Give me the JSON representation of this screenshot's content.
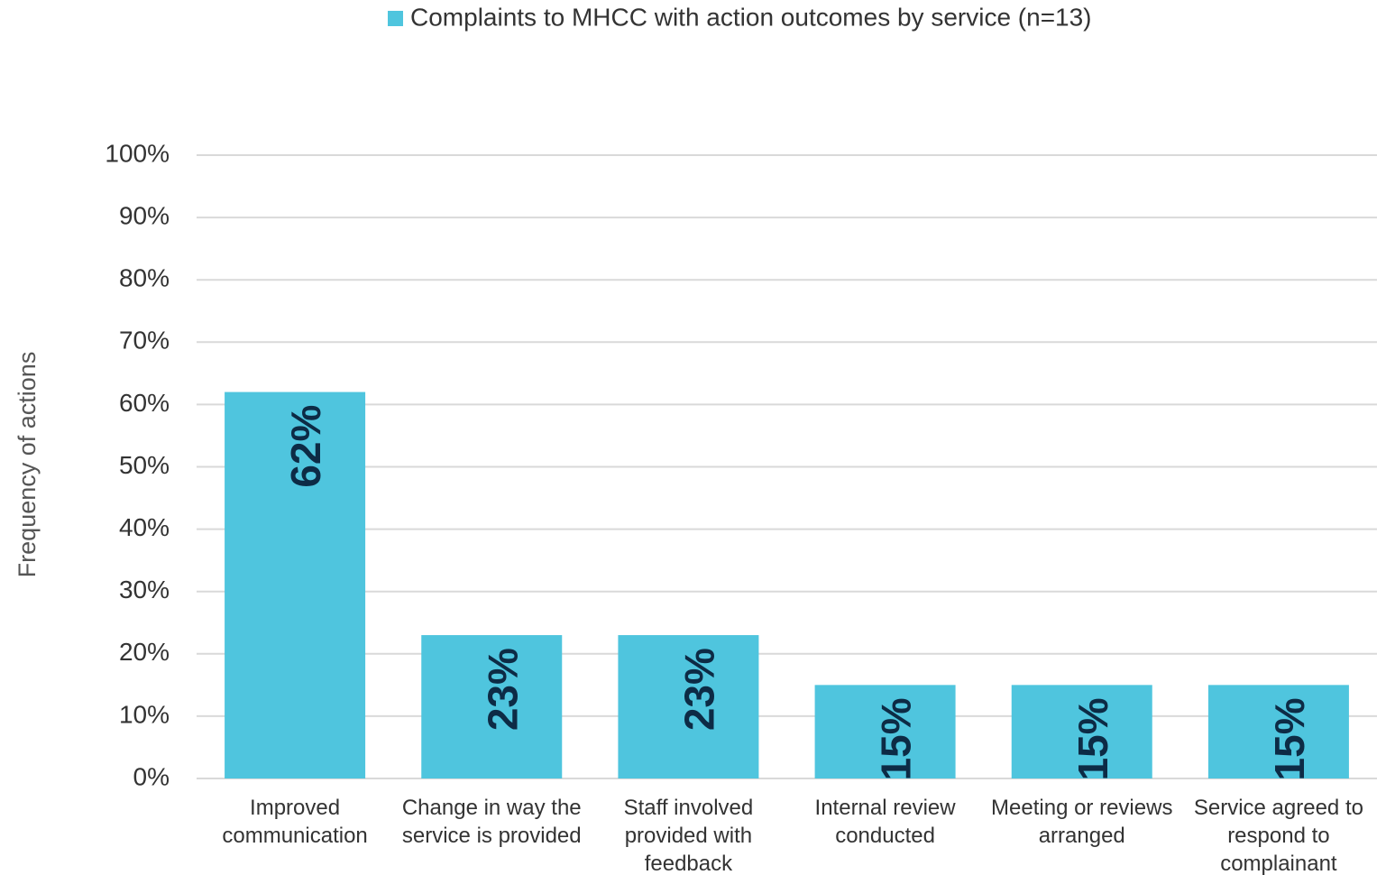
{
  "chart_data": {
    "type": "bar",
    "series": [
      {
        "name": "Complaints to MHCC with action outcomes by service (n=13)",
        "color": "#4fc5de",
        "values": [
          62,
          23,
          23,
          15,
          15,
          15
        ],
        "value_labels": [
          "62%",
          "23%",
          "23%",
          "15%",
          "15%",
          "15%"
        ]
      }
    ],
    "categories": [
      "Improved communication",
      "Change in way the service is provided",
      "Staff involved provided with feedback",
      "Internal review conducted",
      "Meeting or reviews arranged",
      "Service agreed to respond to complainant"
    ],
    "y_label": "Frequency of actions",
    "ylim": [
      0,
      100
    ],
    "yticks": [
      {
        "value": 0,
        "label": "0%"
      },
      {
        "value": 10,
        "label": "10%"
      },
      {
        "value": 20,
        "label": "20%"
      },
      {
        "value": 30,
        "label": "30%"
      },
      {
        "value": 40,
        "label": "40%"
      },
      {
        "value": 50,
        "label": "50%"
      },
      {
        "value": 60,
        "label": "60%"
      },
      {
        "value": 70,
        "label": "70%"
      },
      {
        "value": 80,
        "label": "80%"
      },
      {
        "value": 90,
        "label": "90%"
      },
      {
        "value": 100,
        "label": "100%"
      }
    ],
    "grid": true,
    "legend": "top"
  }
}
